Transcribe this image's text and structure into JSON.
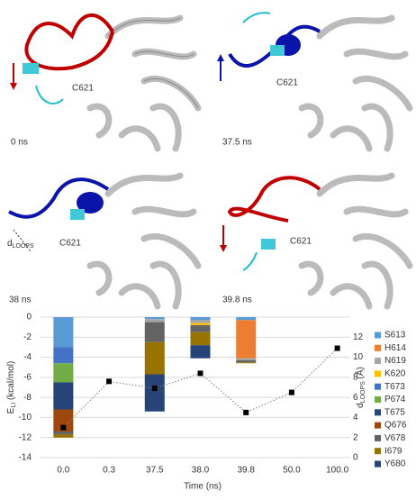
{
  "panels": [
    {
      "time": "0 ns",
      "residue": "C621"
    },
    {
      "time": "37.5 ns",
      "residue": "C621"
    },
    {
      "time": "38 ns",
      "residue": "C621"
    },
    {
      "time": "39.8 ns",
      "residue": "C621"
    }
  ],
  "distance_label": {
    "main": "d",
    "sub": "LOOPS"
  },
  "chart_data": {
    "type": "bar",
    "stacked": true,
    "x_label": "Time (ns)",
    "y_label": {
      "main": "E",
      "sub": "LI",
      "unit": " (kcal/mol)"
    },
    "y2_label": {
      "main": "d",
      "sub": "LOOPS",
      "unit": " (Å)"
    },
    "categories": [
      "0.0",
      "0.3",
      "37.5",
      "38.0",
      "39.8",
      "50.0",
      "100.0"
    ],
    "ylim": [
      -14,
      0
    ],
    "yticks": [
      -14,
      -12,
      -10,
      -8,
      -6,
      -4,
      -2,
      0
    ],
    "y2lim": [
      0,
      14
    ],
    "y2ticks": [
      0,
      2,
      4,
      6,
      8,
      10,
      12
    ],
    "grid": true,
    "series": [
      {
        "name": "S613",
        "color": "#5b9bd5",
        "values": [
          -3.0,
          0,
          -0.2,
          -0.3,
          -0.3,
          0,
          0
        ]
      },
      {
        "name": "H614",
        "color": "#ed7d31",
        "values": [
          0,
          0,
          0,
          0,
          -3.8,
          0,
          0
        ]
      },
      {
        "name": "N619",
        "color": "#a5a5a5",
        "values": [
          0,
          0,
          -0.3,
          -0.3,
          -0.2,
          0,
          0
        ]
      },
      {
        "name": "K620",
        "color": "#ffc000",
        "values": [
          0,
          0,
          0,
          -0.2,
          0,
          0,
          0
        ]
      },
      {
        "name": "T673",
        "color": "#4472c4",
        "values": [
          -1.6,
          0,
          0,
          0,
          0,
          0,
          0
        ]
      },
      {
        "name": "P674",
        "color": "#70ad47",
        "values": [
          -1.9,
          0,
          0,
          0,
          0,
          0,
          0
        ]
      },
      {
        "name": "T675",
        "color": "#264478",
        "values": [
          -2.7,
          0,
          0,
          0,
          0,
          0,
          0
        ]
      },
      {
        "name": "Q676",
        "color": "#9e480e",
        "values": [
          -2.2,
          0,
          0,
          0,
          0,
          0,
          0
        ]
      },
      {
        "name": "V678",
        "color": "#636363",
        "values": [
          -0.3,
          0,
          -2.0,
          -0.7,
          -0.2,
          0,
          0
        ]
      },
      {
        "name": "I679",
        "color": "#997300",
        "values": [
          -0.3,
          0,
          -3.2,
          -1.3,
          -0.1,
          0,
          0
        ]
      },
      {
        "name": "Y680",
        "color": "#264478",
        "values": [
          0,
          0,
          -3.7,
          -1.3,
          0,
          0,
          0
        ]
      }
    ],
    "line": {
      "axis": "y2",
      "color": "#000000",
      "values": [
        3.0,
        7.6,
        6.9,
        8.4,
        4.5,
        6.5,
        10.9
      ]
    }
  }
}
